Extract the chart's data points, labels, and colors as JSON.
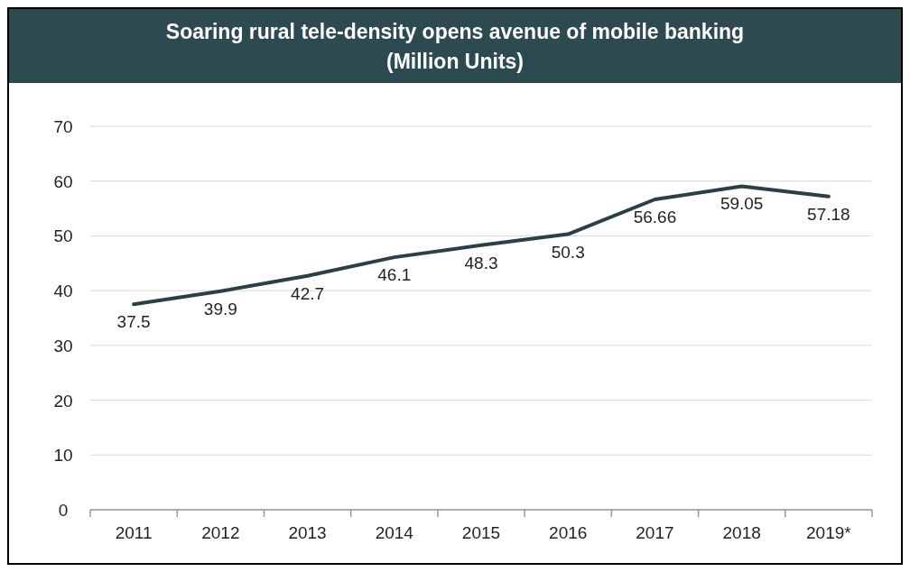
{
  "chart_data": {
    "type": "line",
    "title": "Soaring rural tele-density opens avenue of mobile banking",
    "subtitle": "(Million Units)",
    "categories": [
      "2011",
      "2012",
      "2013",
      "2014",
      "2015",
      "2016",
      "2017",
      "2018",
      "2019*"
    ],
    "series": [
      {
        "color": "#2b3f44",
        "values": [
          37.5,
          39.9,
          42.7,
          46.1,
          48.3,
          50.3,
          56.66,
          59.05,
          57.18
        ]
      }
    ],
    "ylim": [
      0,
      70
    ],
    "yticks": [
      0,
      10,
      20,
      30,
      40,
      50,
      60,
      70
    ],
    "grid": "y",
    "data_labels": true,
    "marker": "none",
    "line_style": "solid"
  }
}
